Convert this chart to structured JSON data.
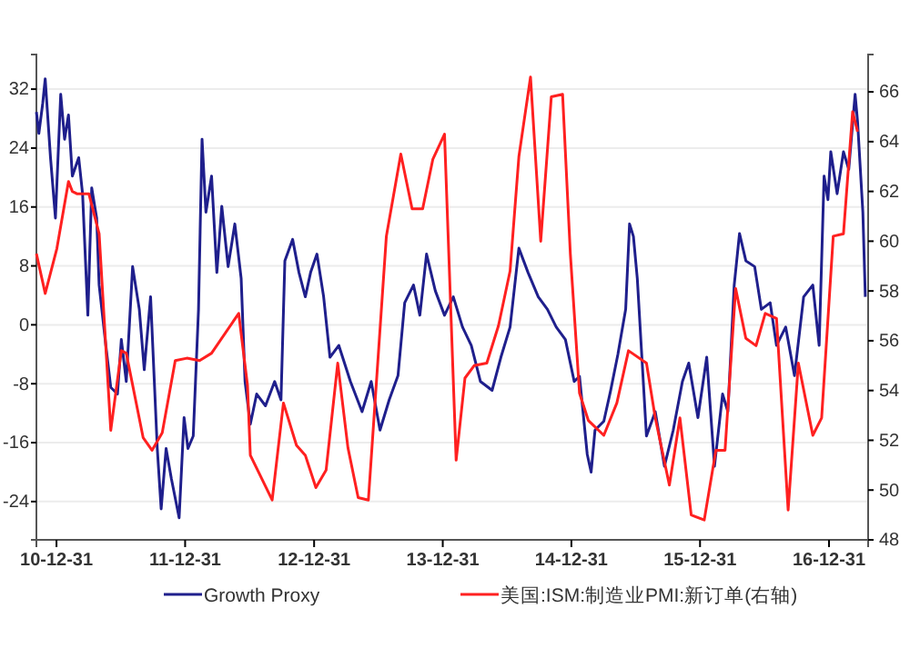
{
  "chart_data": {
    "type": "line",
    "grid": "y",
    "legend": "bottom",
    "marker": "none",
    "line_style": "solid",
    "xlim": [
      "2010-11-04",
      "2017-04-21"
    ],
    "xticks": [
      {
        "value": "2010-12-31",
        "label": "10-12-31"
      },
      {
        "value": "2011-12-31",
        "label": "11-12-31"
      },
      {
        "value": "2012-12-31",
        "label": "12-12-31"
      },
      {
        "value": "2013-12-31",
        "label": "13-12-31"
      },
      {
        "value": "2014-12-31",
        "label": "14-12-31"
      },
      {
        "value": "2015-12-31",
        "label": "15-12-31"
      },
      {
        "value": "2016-12-31",
        "label": "16-12-31"
      }
    ],
    "ylim": [
      -29.2,
      36.7
    ],
    "yticks": [
      -24,
      -16,
      -8,
      0,
      8,
      16,
      24,
      32
    ],
    "y2lim": [
      48,
      67.5
    ],
    "y2ticks": [
      48,
      50,
      52,
      54,
      56,
      58,
      60,
      62,
      64,
      66
    ],
    "series": [
      {
        "name": "Growth Proxy",
        "color": "#1f1f8c",
        "x": [
          "2010-11-04",
          "2010-11-11",
          "2010-11-22",
          "2010-11-29",
          "2010-12-14",
          "2010-12-28",
          "2011-01-12",
          "2011-01-23",
          "2011-02-03",
          "2011-02-14",
          "2011-03-04",
          "2011-03-15",
          "2011-03-30",
          "2011-04-10",
          "2011-04-24",
          "2011-05-01",
          "2011-05-20",
          "2011-06-03",
          "2011-06-22",
          "2011-07-03",
          "2011-07-17",
          "2011-08-04",
          "2011-08-23",
          "2011-09-06",
          "2011-09-24",
          "2011-10-13",
          "2011-10-24",
          "2011-11-07",
          "2011-11-22",
          "2011-12-14",
          "2011-12-28",
          "2012-01-08",
          "2012-01-23",
          "2012-02-07",
          "2012-02-17",
          "2012-02-28",
          "2012-03-15",
          "2012-03-30",
          "2012-04-13",
          "2012-05-01",
          "2012-05-20",
          "2012-06-07",
          "2012-06-18",
          "2012-07-03",
          "2012-07-21",
          "2012-08-15",
          "2012-09-10",
          "2012-09-28",
          "2012-10-09",
          "2012-10-31",
          "2012-11-18",
          "2012-12-06",
          "2012-12-21",
          "2013-01-08",
          "2013-01-27",
          "2013-02-14",
          "2013-03-11",
          "2013-04-13",
          "2013-05-16",
          "2013-06-11",
          "2013-07-06",
          "2013-08-01",
          "2013-08-26",
          "2013-09-14",
          "2013-10-09",
          "2013-10-27",
          "2013-11-15",
          "2013-12-10",
          "2014-01-05",
          "2014-01-30",
          "2014-02-25",
          "2014-03-22",
          "2014-04-17",
          "2014-05-20",
          "2014-06-14",
          "2014-07-10",
          "2014-08-04",
          "2014-08-30",
          "2014-09-28",
          "2014-10-24",
          "2014-11-18",
          "2014-12-14",
          "2015-01-08",
          "2015-01-23",
          "2015-02-14",
          "2015-02-25",
          "2015-03-08",
          "2015-04-02",
          "2015-04-21",
          "2015-05-12",
          "2015-06-03",
          "2015-06-14",
          "2015-06-25",
          "2015-07-06",
          "2015-08-01",
          "2015-08-26",
          "2015-09-21",
          "2015-10-16",
          "2015-11-11",
          "2015-11-29",
          "2015-12-25",
          "2016-01-19",
          "2016-02-10",
          "2016-03-04",
          "2016-03-19",
          "2016-04-06",
          "2016-04-21",
          "2016-05-09",
          "2016-06-03",
          "2016-06-22",
          "2016-07-17",
          "2016-08-04",
          "2016-08-30",
          "2016-09-24",
          "2016-10-20",
          "2016-11-15",
          "2016-12-03",
          "2016-12-17",
          "2016-12-28",
          "2017-01-05",
          "2017-01-23",
          "2017-02-10",
          "2017-02-25",
          "2017-03-15",
          "2017-03-22",
          "2017-04-06",
          "2017-04-13"
        ],
        "values": [
          28.9,
          26.0,
          30.1,
          33.4,
          22.7,
          14.5,
          31.3,
          25.2,
          28.5,
          20.2,
          22.7,
          17.8,
          1.3,
          18.6,
          14.5,
          5.4,
          -2.8,
          -8.5,
          -9.4,
          -2.0,
          -7.7,
          7.9,
          2.1,
          -6.1,
          3.8,
          -16.8,
          -25.0,
          -16.8,
          -20.9,
          -26.2,
          -12.6,
          -16.8,
          -15.1,
          2.1,
          25.2,
          15.3,
          20.2,
          7.1,
          16.1,
          7.9,
          13.7,
          6.3,
          -7.7,
          -13.5,
          -9.4,
          -11.0,
          -7.7,
          -10.2,
          8.7,
          11.6,
          7.1,
          3.8,
          7.1,
          9.6,
          3.8,
          -4.4,
          -2.8,
          -7.7,
          -11.8,
          -7.7,
          -14.3,
          -10.2,
          -6.9,
          3.0,
          5.4,
          1.3,
          9.6,
          4.6,
          1.3,
          3.8,
          -0.3,
          -2.8,
          -7.7,
          -8.9,
          -4.4,
          -0.3,
          10.4,
          7.1,
          3.8,
          2.1,
          -0.3,
          -2.0,
          -7.7,
          -7.0,
          -17.6,
          -20.0,
          -14.3,
          -13.1,
          -9.0,
          -4.0,
          2.1,
          13.7,
          12.0,
          6.3,
          -15.1,
          -11.8,
          -19.2,
          -14.3,
          -7.7,
          -5.2,
          -12.6,
          -4.4,
          -19.2,
          -9.4,
          -11.8,
          5.4,
          12.4,
          8.7,
          7.9,
          2.1,
          3.0,
          -2.8,
          -0.3,
          -6.9,
          3.8,
          5.4,
          -2.8,
          20.2,
          17.0,
          23.5,
          17.8,
          23.5,
          21.1,
          31.3,
          27.6,
          15.3,
          3.8
        ]
      },
      {
        "name": "美国:ISM:制造业PMI:新订单(右轴)",
        "color": "#ff2020",
        "axis": "y2",
        "x": [
          "2010-11-04",
          "2010-11-29",
          "2011-01-01",
          "2011-02-03",
          "2011-02-14",
          "2011-02-28",
          "2011-04-02",
          "2011-05-01",
          "2011-06-03",
          "2011-07-03",
          "2011-07-17",
          "2011-09-03",
          "2011-09-28",
          "2011-10-27",
          "2011-12-03",
          "2012-01-05",
          "2012-02-10",
          "2012-03-15",
          "2012-05-31",
          "2012-06-25",
          "2012-07-03",
          "2012-09-03",
          "2012-10-05",
          "2012-11-11",
          "2012-12-06",
          "2013-01-05",
          "2013-02-03",
          "2013-03-08",
          "2013-04-06",
          "2013-05-05",
          "2013-06-03",
          "2013-07-24",
          "2013-09-03",
          "2013-10-05",
          "2013-11-04",
          "2013-12-03",
          "2014-01-05",
          "2014-02-07",
          "2014-03-04",
          "2014-03-30",
          "2014-05-05",
          "2014-06-07",
          "2014-07-10",
          "2014-08-04",
          "2014-09-06",
          "2014-10-05",
          "2014-11-04",
          "2014-12-06",
          "2014-12-28",
          "2015-01-23",
          "2015-02-17",
          "2015-04-02",
          "2015-05-09",
          "2015-06-11",
          "2015-08-01",
          "2015-08-26",
          "2015-10-05",
          "2015-11-04",
          "2015-12-06",
          "2016-01-12",
          "2016-02-14",
          "2016-03-11",
          "2016-04-10",
          "2016-05-09",
          "2016-06-07",
          "2016-07-03",
          "2016-08-04",
          "2016-09-06",
          "2016-10-05",
          "2016-11-15",
          "2016-12-10",
          "2017-01-12",
          "2017-02-10",
          "2017-03-08",
          "2017-03-22"
        ],
        "values": [
          59.5,
          57.9,
          59.7,
          62.4,
          62.0,
          61.9,
          61.9,
          60.3,
          52.4,
          55.6,
          55.5,
          52.1,
          51.6,
          52.3,
          55.2,
          55.3,
          55.2,
          55.5,
          57.1,
          54.2,
          51.4,
          49.6,
          53.5,
          51.8,
          51.4,
          50.1,
          50.8,
          55.1,
          51.7,
          49.7,
          49.6,
          60.2,
          63.5,
          61.3,
          61.3,
          63.3,
          64.3,
          51.2,
          54.5,
          55.0,
          55.1,
          56.6,
          58.8,
          63.4,
          66.6,
          60.0,
          65.8,
          65.9,
          59.5,
          53.9,
          52.8,
          52.2,
          53.5,
          55.6,
          55.1,
          52.9,
          50.2,
          52.9,
          49.0,
          48.8,
          51.6,
          51.6,
          58.1,
          56.1,
          55.8,
          57.1,
          56.9,
          49.2,
          55.1,
          52.2,
          52.9,
          60.2,
          60.3,
          65.2,
          64.4
        ]
      }
    ]
  }
}
